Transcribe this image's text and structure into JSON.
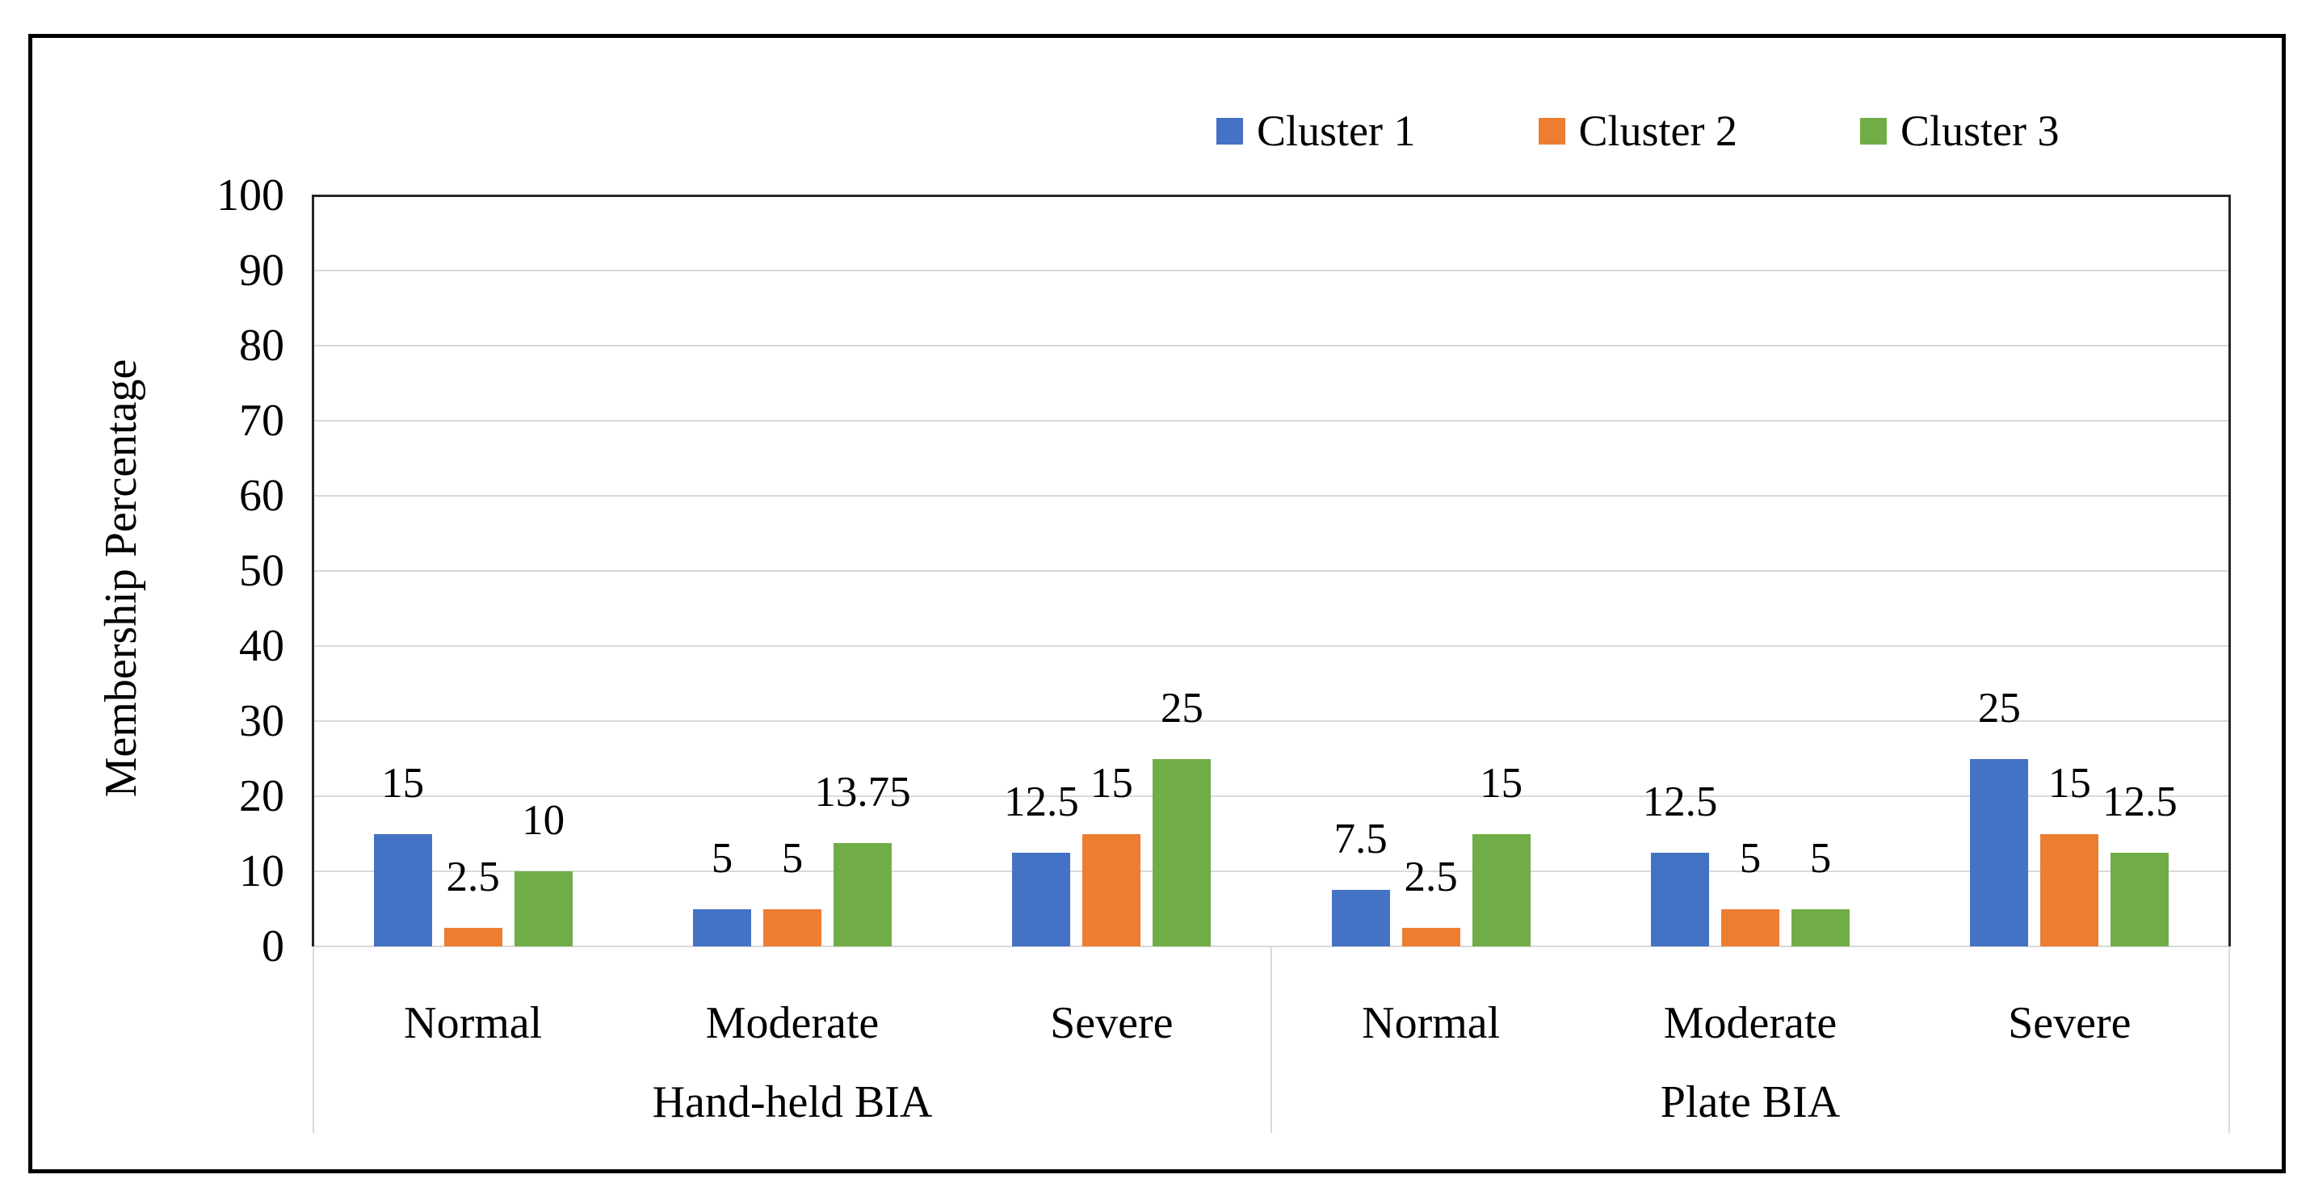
{
  "chart_data": {
    "type": "bar",
    "title": "",
    "ylabel": "Membership Percentage",
    "xlabel": "",
    "ylim": [
      0,
      100
    ],
    "ytick_step": 10,
    "yticks": [
      0,
      10,
      20,
      30,
      40,
      50,
      60,
      70,
      80,
      90,
      100
    ],
    "grid": true,
    "data_labels": true,
    "legend_position": "top-right",
    "categories_level1": [
      "Normal",
      "Moderate",
      "Severe",
      "Normal",
      "Moderate",
      "Severe"
    ],
    "categories_level2": [
      {
        "label": "Hand-held BIA",
        "span": [
          0,
          2
        ]
      },
      {
        "label": "Plate BIA",
        "span": [
          3,
          5
        ]
      }
    ],
    "series": [
      {
        "name": "Cluster 1",
        "color": "#4472C4",
        "values": [
          15,
          5,
          12.5,
          7.5,
          12.5,
          25
        ]
      },
      {
        "name": "Cluster 2",
        "color": "#ED7D31",
        "values": [
          2.5,
          5,
          15,
          2.5,
          5,
          15
        ]
      },
      {
        "name": "Cluster 3",
        "color": "#70AD47",
        "values": [
          10,
          13.75,
          25,
          15,
          5,
          12.5
        ]
      }
    ],
    "colors": {
      "gridline": "#D9D9D9",
      "axis_line": "#262626",
      "frame_border": "#000000",
      "text": "#000000",
      "background": "#FFFFFF"
    }
  }
}
